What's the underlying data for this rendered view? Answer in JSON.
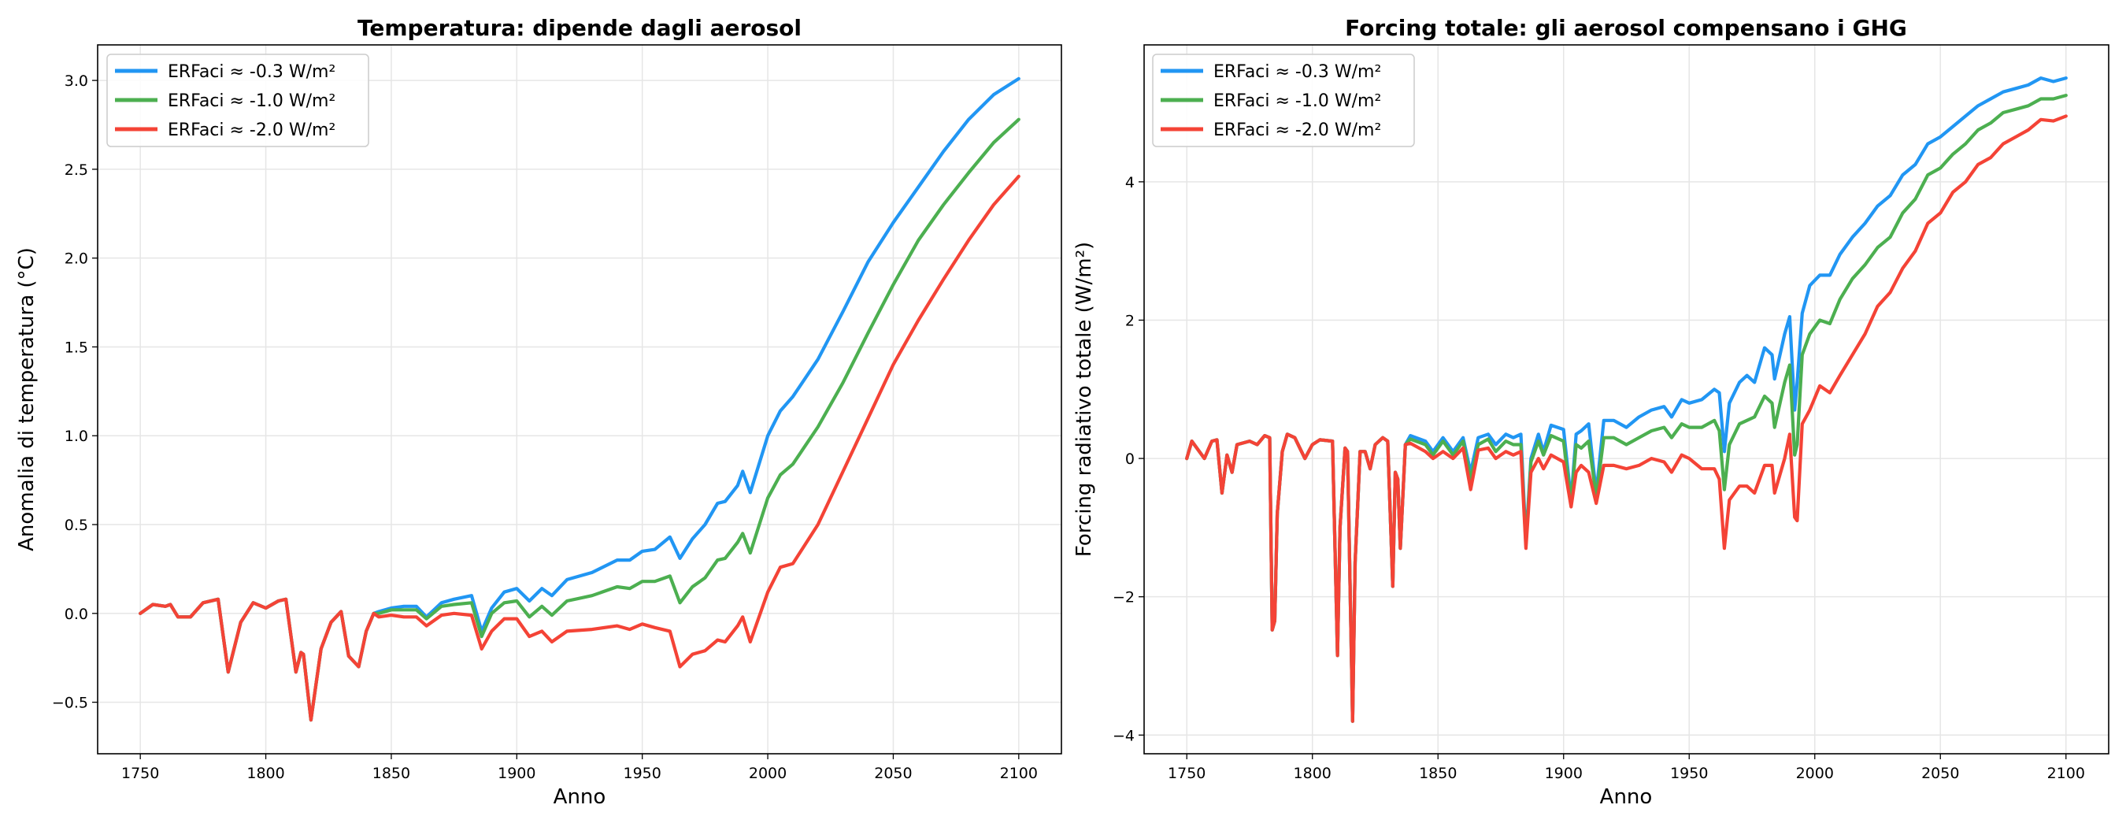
{
  "chart_data": [
    {
      "type": "line",
      "title": "Temperatura: dipende dagli aerosol",
      "xlabel": "Anno",
      "ylabel": "Anomalia di temperatura (°C)",
      "xlim": [
        1733,
        2117
      ],
      "ylim": [
        -0.79,
        3.2
      ],
      "xticks": [
        1750,
        1800,
        1850,
        1900,
        1950,
        2000,
        2050,
        2100
      ],
      "yticks": [
        -0.5,
        0.0,
        0.5,
        1.0,
        1.5,
        2.0,
        2.5,
        3.0
      ],
      "ytick_labels": [
        "−0.5",
        "0.0",
        "0.5",
        "1.0",
        "1.5",
        "2.0",
        "2.5",
        "3.0"
      ],
      "grid": true,
      "legend": "top-left",
      "x": [
        1750,
        1755,
        1760,
        1762,
        1765,
        1770,
        1775,
        1781,
        1785,
        1790,
        1795,
        1800,
        1805,
        1808,
        1812,
        1814,
        1815,
        1818,
        1822,
        1826,
        1830,
        1833,
        1837,
        1840,
        1843,
        1845,
        1850,
        1855,
        1860,
        1864,
        1870,
        1875,
        1882,
        1886,
        1890,
        1895,
        1900,
        1905,
        1910,
        1914,
        1920,
        1930,
        1940,
        1945,
        1950,
        1955,
        1961,
        1965,
        1970,
        1975,
        1980,
        1983,
        1988,
        1990,
        1993,
        2000,
        2005,
        2010,
        2020,
        2030,
        2040,
        2050,
        2060,
        2070,
        2080,
        2090,
        2100
      ],
      "series": [
        {
          "name": "ERFaci ≈ -0.3 W/m²",
          "color": "#2196F3",
          "values": [
            0,
            0.05,
            0.04,
            0.05,
            -0.02,
            -0.02,
            0.06,
            0.08,
            -0.33,
            -0.05,
            0.06,
            0.03,
            0.07,
            0.08,
            -0.33,
            -0.22,
            -0.23,
            -0.6,
            -0.2,
            -0.05,
            0.01,
            -0.24,
            -0.3,
            -0.1,
            0.0,
            0.01,
            0.03,
            0.04,
            0.04,
            -0.02,
            0.06,
            0.08,
            0.1,
            -0.1,
            0.03,
            0.12,
            0.14,
            0.07,
            0.14,
            0.1,
            0.19,
            0.23,
            0.3,
            0.3,
            0.35,
            0.36,
            0.43,
            0.31,
            0.42,
            0.5,
            0.62,
            0.63,
            0.72,
            0.8,
            0.68,
            1.0,
            1.14,
            1.22,
            1.43,
            1.7,
            1.98,
            2.2,
            2.4,
            2.6,
            2.78,
            2.92,
            3.01
          ]
        },
        {
          "name": "ERFaci ≈ -1.0 W/m²",
          "color": "#4CAF50",
          "values": [
            0,
            0.05,
            0.04,
            0.05,
            -0.02,
            -0.02,
            0.06,
            0.08,
            -0.33,
            -0.05,
            0.06,
            0.03,
            0.07,
            0.08,
            -0.33,
            -0.22,
            -0.23,
            -0.6,
            -0.2,
            -0.05,
            0.01,
            -0.24,
            -0.3,
            -0.1,
            0.0,
            0,
            0.02,
            0.02,
            0.02,
            -0.03,
            0.04,
            0.05,
            0.06,
            -0.13,
            0,
            0.06,
            0.07,
            -0.02,
            0.04,
            -0.01,
            0.07,
            0.1,
            0.15,
            0.14,
            0.18,
            0.18,
            0.21,
            0.06,
            0.15,
            0.2,
            0.3,
            0.31,
            0.4,
            0.45,
            0.34,
            0.65,
            0.78,
            0.84,
            1.05,
            1.3,
            1.58,
            1.85,
            2.1,
            2.3,
            2.48,
            2.65,
            2.78
          ]
        },
        {
          "name": "ERFaci ≈ -2.0 W/m²",
          "color": "#F44336",
          "values": [
            0,
            0.05,
            0.04,
            0.05,
            -0.02,
            -0.02,
            0.06,
            0.08,
            -0.33,
            -0.05,
            0.06,
            0.03,
            0.07,
            0.08,
            -0.33,
            -0.22,
            -0.23,
            -0.6,
            -0.2,
            -0.05,
            0.01,
            -0.24,
            -0.3,
            -0.1,
            0.0,
            -0.02,
            -0.01,
            -0.02,
            -0.02,
            -0.07,
            -0.01,
            0,
            -0.01,
            -0.2,
            -0.1,
            -0.03,
            -0.03,
            -0.13,
            -0.1,
            -0.16,
            -0.1,
            -0.09,
            -0.07,
            -0.09,
            -0.06,
            -0.08,
            -0.1,
            -0.3,
            -0.23,
            -0.21,
            -0.15,
            -0.16,
            -0.07,
            -0.02,
            -0.16,
            0.12,
            0.26,
            0.28,
            0.5,
            0.8,
            1.1,
            1.4,
            1.65,
            1.88,
            2.1,
            2.3,
            2.46
          ]
        }
      ]
    },
    {
      "type": "line",
      "title": "Forcing totale: gli aerosol compensano i GHG",
      "xlabel": "Anno",
      "ylabel": "Forcing radiativo totale (W/m²)",
      "xlim": [
        1733,
        2117
      ],
      "ylim": [
        -4.27,
        5.98
      ],
      "xticks": [
        1750,
        1800,
        1850,
        1900,
        1950,
        2000,
        2050,
        2100
      ],
      "yticks": [
        -4,
        -2,
        0,
        2,
        4
      ],
      "ytick_labels": [
        "−4",
        "−2",
        "0",
        "2",
        "4"
      ],
      "grid": true,
      "legend": "top-left",
      "x": [
        1750,
        1752,
        1757,
        1760,
        1762,
        1764,
        1766,
        1768,
        1770,
        1775,
        1778,
        1781,
        1783,
        1784,
        1785,
        1786,
        1788,
        1790,
        1793,
        1797,
        1800,
        1803,
        1808,
        1810,
        1811,
        1813,
        1814,
        1816,
        1817,
        1819,
        1821,
        1823,
        1825,
        1828,
        1830,
        1832,
        1833,
        1834,
        1835,
        1837,
        1839,
        1845,
        1848,
        1852,
        1856,
        1860,
        1863,
        1866,
        1870,
        1873,
        1877,
        1880,
        1883,
        1885,
        1887,
        1890,
        1892,
        1895,
        1900,
        1903,
        1905,
        1907,
        1910,
        1913,
        1916,
        1920,
        1925,
        1930,
        1935,
        1940,
        1943,
        1947,
        1950,
        1955,
        1960,
        1962,
        1964,
        1966,
        1970,
        1973,
        1976,
        1980,
        1983,
        1984,
        1988,
        1990,
        1992,
        1993,
        1995,
        1998,
        2002,
        2006,
        2010,
        2015,
        2020,
        2025,
        2030,
        2035,
        2040,
        2045,
        2050,
        2055,
        2060,
        2065,
        2070,
        2075,
        2080,
        2085,
        2090,
        2095,
        2100
      ],
      "series": [
        {
          "name": "ERFaci ≈ -0.3 W/m²",
          "color": "#2196F3",
          "values": [
            0,
            0.25,
            0,
            0.25,
            0.27,
            -0.5,
            0.05,
            -0.2,
            0.2,
            0.25,
            0.2,
            0.33,
            0.3,
            -2.48,
            -2.35,
            -0.8,
            0.1,
            0.35,
            0.3,
            0,
            0.2,
            0.27,
            0.25,
            -2.85,
            -1,
            0.15,
            0.1,
            -3.8,
            -1.5,
            0.1,
            0.1,
            -0.15,
            0.2,
            0.3,
            0.25,
            -1.85,
            -0.2,
            -0.3,
            -1.3,
            0.2,
            0.33,
            0.25,
            0.1,
            0.3,
            0.1,
            0.3,
            -0.2,
            0.3,
            0.35,
            0.2,
            0.35,
            0.3,
            0.35,
            -1.2,
            0,
            0.35,
            0.1,
            0.48,
            0.42,
            -0.6,
            0.35,
            0.4,
            0.5,
            -0.5,
            0.55,
            0.55,
            0.45,
            0.6,
            0.7,
            0.75,
            0.6,
            0.85,
            0.8,
            0.85,
            1.0,
            0.95,
            0.1,
            0.8,
            1.1,
            1.2,
            1.1,
            1.6,
            1.5,
            1.15,
            1.8,
            2.05,
            0.7,
            1.1,
            2.1,
            2.5,
            2.65,
            2.65,
            2.95,
            3.2,
            3.4,
            3.65,
            3.8,
            4.1,
            4.25,
            4.55,
            4.65,
            4.8,
            4.95,
            5.1,
            5.2,
            5.3,
            5.35,
            5.4,
            5.5,
            5.45,
            5.5
          ]
        },
        {
          "name": "ERFaci ≈ -1.0 W/m²",
          "color": "#4CAF50",
          "values": [
            0,
            0.25,
            0,
            0.25,
            0.27,
            -0.5,
            0.05,
            -0.2,
            0.2,
            0.25,
            0.2,
            0.33,
            0.3,
            -2.48,
            -2.35,
            -0.8,
            0.1,
            0.35,
            0.3,
            0,
            0.2,
            0.27,
            0.25,
            -2.85,
            -1,
            0.15,
            0.1,
            -3.8,
            -1.5,
            0.1,
            0.1,
            -0.15,
            0.2,
            0.3,
            0.25,
            -1.85,
            -0.2,
            -0.3,
            -1.3,
            0.2,
            0.28,
            0.2,
            0.05,
            0.25,
            0.05,
            0.25,
            -0.3,
            0.2,
            0.28,
            0.1,
            0.25,
            0.2,
            0.2,
            -1.25,
            -0.05,
            0.25,
            0.05,
            0.33,
            0.25,
            -0.65,
            0.2,
            0.15,
            0.25,
            -0.55,
            0.3,
            0.3,
            0.2,
            0.3,
            0.4,
            0.45,
            0.3,
            0.5,
            0.45,
            0.45,
            0.55,
            0.4,
            -0.45,
            0.2,
            0.5,
            0.55,
            0.6,
            0.9,
            0.8,
            0.45,
            1.1,
            1.35,
            0.05,
            0.2,
            1.5,
            1.8,
            2.0,
            1.95,
            2.3,
            2.6,
            2.8,
            3.05,
            3.2,
            3.55,
            3.75,
            4.1,
            4.2,
            4.4,
            4.55,
            4.75,
            4.85,
            5.0,
            5.05,
            5.1,
            5.2,
            5.2,
            5.25
          ]
        },
        {
          "name": "ERFaci ≈ -2.0 W/m²",
          "color": "#F44336",
          "values": [
            0,
            0.25,
            0,
            0.25,
            0.27,
            -0.5,
            0.05,
            -0.2,
            0.2,
            0.25,
            0.2,
            0.33,
            0.3,
            -2.48,
            -2.35,
            -0.8,
            0.1,
            0.35,
            0.3,
            0,
            0.2,
            0.27,
            0.25,
            -2.85,
            -1,
            0.15,
            0.1,
            -3.8,
            -1.5,
            0.1,
            0.1,
            -0.15,
            0.2,
            0.3,
            0.25,
            -1.85,
            -0.2,
            -0.3,
            -1.3,
            0.2,
            0.22,
            0.1,
            0,
            0.1,
            0,
            0.15,
            -0.45,
            0.12,
            0.15,
            0,
            0.1,
            0.05,
            0.1,
            -1.3,
            -0.2,
            0,
            -0.15,
            0.05,
            -0.05,
            -0.7,
            -0.2,
            -0.1,
            -0.2,
            -0.65,
            -0.1,
            -0.1,
            -0.15,
            -0.1,
            0,
            -0.05,
            -0.2,
            0.05,
            0,
            -0.15,
            -0.15,
            -0.3,
            -1.3,
            -0.6,
            -0.4,
            -0.4,
            -0.5,
            -0.1,
            -0.1,
            -0.5,
            0,
            0.35,
            -0.85,
            -0.9,
            0.5,
            0.7,
            1.05,
            0.95,
            1.2,
            1.5,
            1.8,
            2.2,
            2.4,
            2.75,
            3.0,
            3.4,
            3.55,
            3.85,
            4.0,
            4.25,
            4.35,
            4.55,
            4.65,
            4.75,
            4.9,
            4.88,
            4.95
          ]
        }
      ]
    }
  ]
}
